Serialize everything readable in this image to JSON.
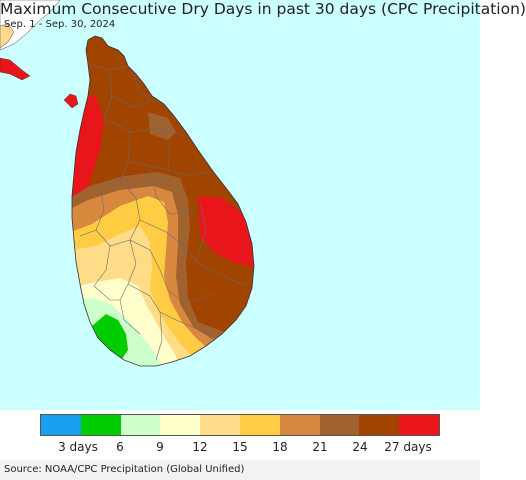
{
  "title": "Maximum Consecutive Dry Days in past 30 days (CPC Precipitation)",
  "subtitle": "Sep. 1 - Sep. 30, 2024",
  "source": "Source: NOAA/CPC Precipitation (Global Unified)",
  "colors": {
    "ocean": "#ccffff",
    "outside_land": "#ffffff",
    "india_tip": "#ffd890",
    "india_red": "#e8151a",
    "district_lines": "#6b6b6b"
  },
  "legend": {
    "colors": [
      "#1aa0f0",
      "#00cc00",
      "#ccffcc",
      "#ffffcc",
      "#ffdd88",
      "#ffcc44",
      "#d98840",
      "#a0622e",
      "#a14400",
      "#e8151a"
    ],
    "labels": [
      "3 days",
      "6",
      "9",
      "12",
      "15",
      "18",
      "21",
      "24",
      "27 days"
    ]
  }
}
